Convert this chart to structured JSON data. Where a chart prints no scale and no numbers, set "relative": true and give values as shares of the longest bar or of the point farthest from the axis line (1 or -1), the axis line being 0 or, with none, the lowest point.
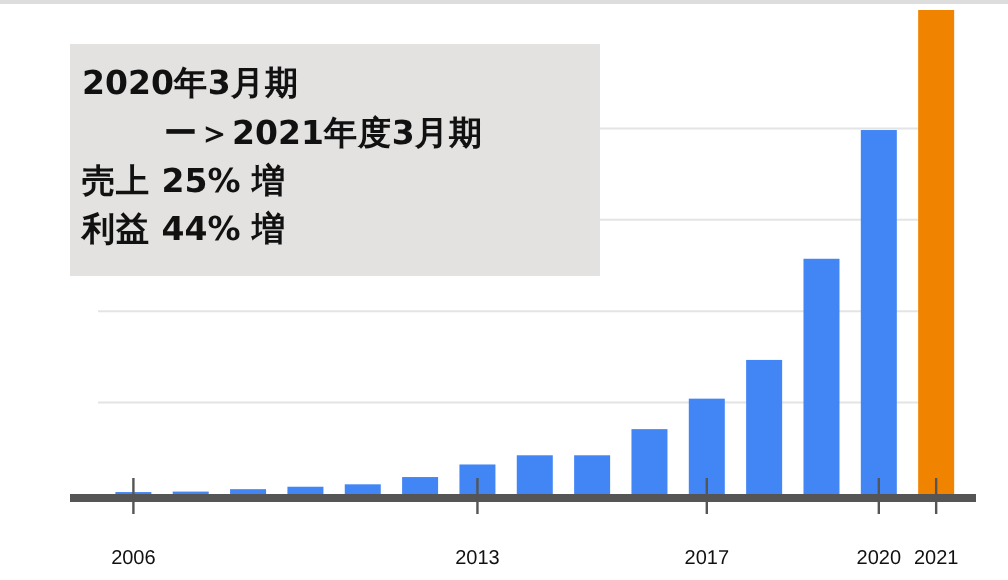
{
  "chart_data": {
    "type": "bar",
    "relative": true,
    "grid": true,
    "categories": [
      "2006",
      null,
      null,
      null,
      null,
      null,
      "2013",
      null,
      null,
      null,
      "2017",
      null,
      null,
      "2020",
      "2021"
    ],
    "values": [
      0.004,
      0.005,
      0.01,
      0.015,
      0.02,
      0.035,
      0.061,
      0.08,
      0.08,
      0.134,
      0.197,
      0.277,
      0.486,
      0.752,
      1
    ],
    "colors": [
      "#4285f4",
      "#4285f4",
      "#4285f4",
      "#4285f4",
      "#4285f4",
      "#4285f4",
      "#4285f4",
      "#4285f4",
      "#4285f4",
      "#4285f4",
      "#4285f4",
      "#4285f4",
      "#4285f4",
      "#4285f4",
      "#f08400"
    ],
    "annotations": [
      "2020年3月期",
      "ー＞2021年度3月期",
      "売上 25% 増",
      "利益 44% 増"
    ]
  }
}
